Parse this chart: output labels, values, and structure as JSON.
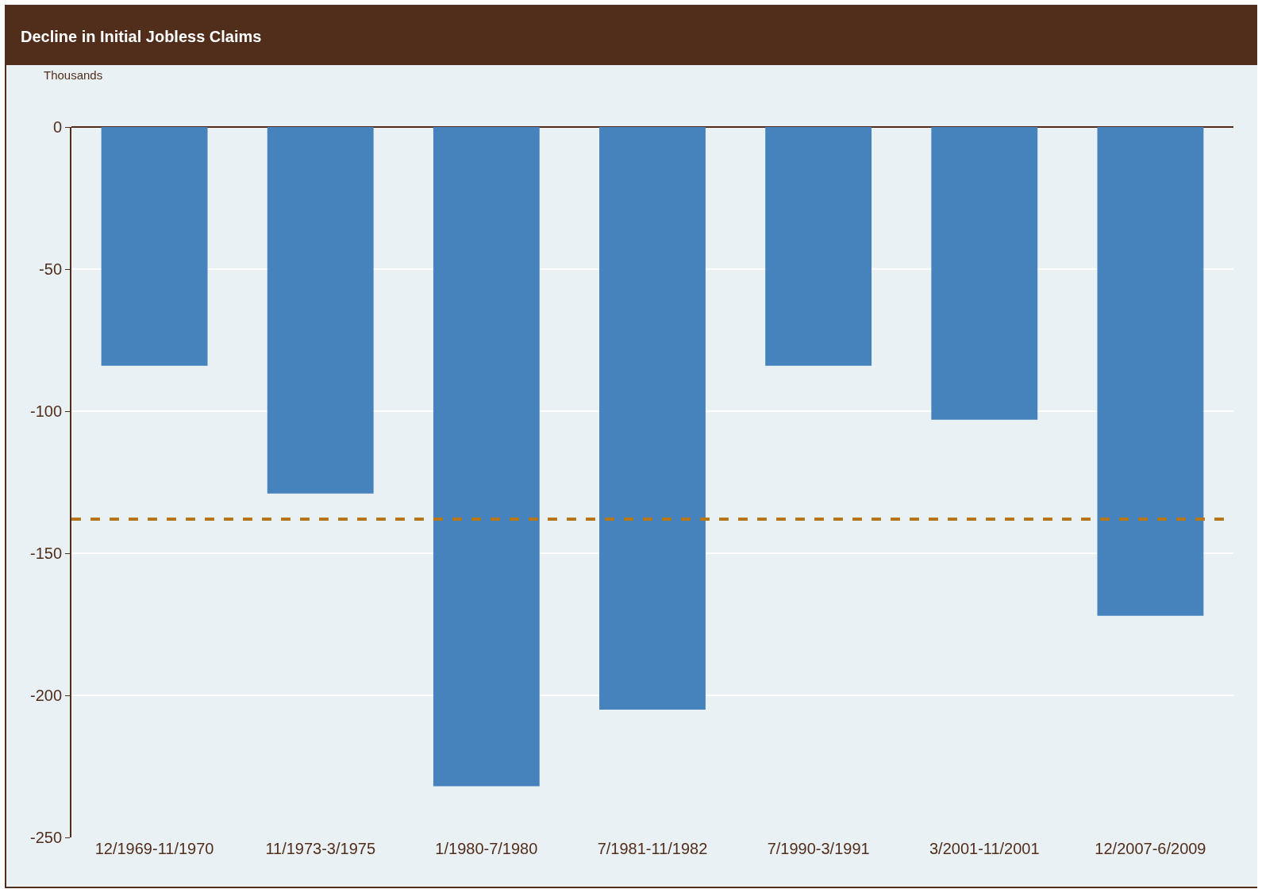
{
  "chart_data": {
    "type": "bar",
    "title": "Decline in Initial Jobless Claims",
    "ylabel": "Thousands",
    "categories": [
      "12/1969-11/1970",
      "11/1973-3/1975",
      "1/1980-7/1980",
      "7/1981-11/1982",
      "7/1990-3/1991",
      "3/2001-11/2001",
      "12/2007-6/2009"
    ],
    "values": [
      -84,
      -129,
      -232,
      -205,
      -84,
      -103,
      -172
    ],
    "color": "#4682bb",
    "ylim": [
      -250,
      0
    ],
    "yticks": [
      -250,
      -200,
      -150,
      -100,
      -50,
      0
    ],
    "grid": "y",
    "ref_lines": [
      {
        "axis": "y",
        "value": -138,
        "color": "#b5771a",
        "line_style": "dashed"
      }
    ]
  }
}
